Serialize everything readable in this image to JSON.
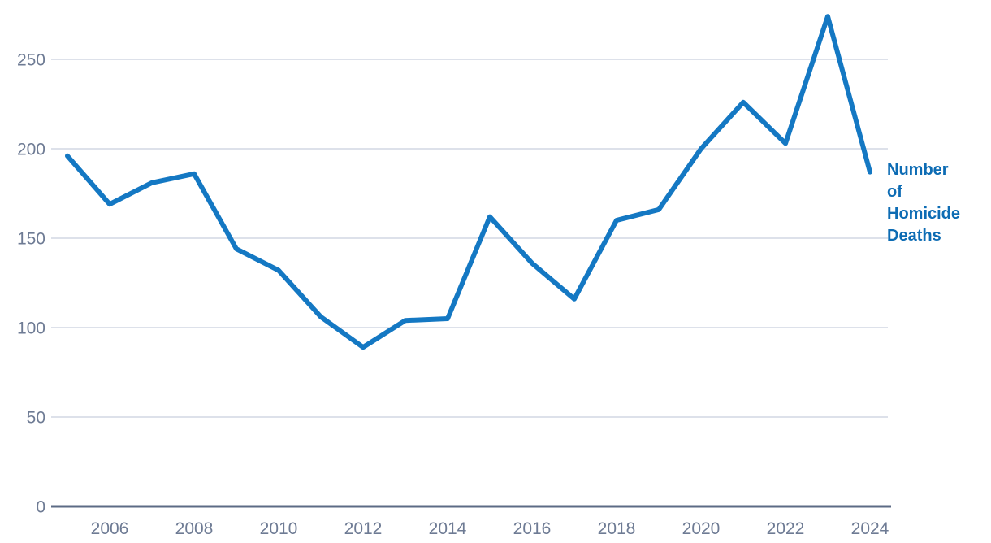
{
  "chart_data": {
    "type": "line",
    "title": "",
    "xlabel": "",
    "ylabel": "",
    "x": [
      2005,
      2006,
      2007,
      2008,
      2009,
      2010,
      2011,
      2012,
      2013,
      2014,
      2015,
      2016,
      2017,
      2018,
      2019,
      2020,
      2021,
      2022,
      2023,
      2024
    ],
    "series": [
      {
        "name": "Number of Homicide Deaths",
        "values": [
          196,
          169,
          181,
          186,
          144,
          132,
          106,
          89,
          104,
          105,
          162,
          136,
          116,
          160,
          166,
          200,
          226,
          203,
          274,
          187
        ]
      }
    ],
    "y_ticks": [
      0,
      50,
      100,
      150,
      200,
      250
    ],
    "x_ticks": [
      2006,
      2008,
      2010,
      2012,
      2014,
      2016,
      2018,
      2020,
      2022,
      2024
    ],
    "ylim": [
      0,
      280
    ],
    "grid": "horizontal",
    "legend_position": "right-of-line-end",
    "legend_label": "Number of Homicide Deaths",
    "colors": {
      "line": "#1478c3",
      "series_label": "#0d6cb4",
      "gridline": "#dde1ea",
      "axis_line": "#5c6b85",
      "tick_text": "#6e7b94",
      "background": "#ffffff"
    }
  }
}
